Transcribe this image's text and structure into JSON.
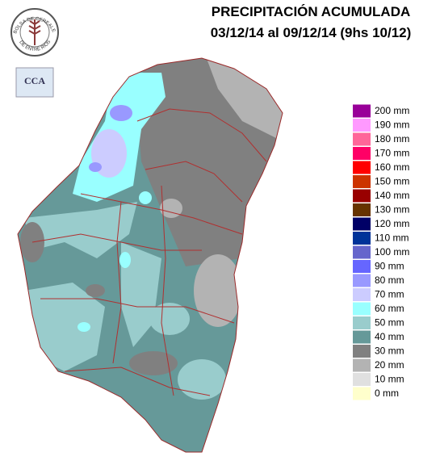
{
  "header": {
    "title": "PRECIPITACIÓN ACUMULADA",
    "subtitle": "03/12/14 al 09/12/14 (9hs 10/12)"
  },
  "logo": {
    "top_text": "BOLSA DE CEREALES",
    "bottom_text": "DE ENTRE RIOS",
    "badge": "CCA"
  },
  "legend": {
    "items": [
      {
        "label": "200 mm",
        "color": "#990099"
      },
      {
        "label": "190 mm",
        "color": "#ff99ff"
      },
      {
        "label": "180 mm",
        "color": "#ff6699"
      },
      {
        "label": "170 mm",
        "color": "#ff0066"
      },
      {
        "label": "160 mm",
        "color": "#ff0000"
      },
      {
        "label": "150 mm",
        "color": "#cc3300"
      },
      {
        "label": "140 mm",
        "color": "#990000"
      },
      {
        "label": "130 mm",
        "color": "#663300"
      },
      {
        "label": "120 mm",
        "color": "#000066"
      },
      {
        "label": "110 mm",
        "color": "#003399"
      },
      {
        "label": "100 mm",
        "color": "#6666cc"
      },
      {
        "label": "90 mm",
        "color": "#6666ff"
      },
      {
        "label": "80 mm",
        "color": "#9999ff"
      },
      {
        "label": "70 mm",
        "color": "#ccccff"
      },
      {
        "label": "60 mm",
        "color": "#99ffff"
      },
      {
        "label": "50 mm",
        "color": "#99cccc"
      },
      {
        "label": "40 mm",
        "color": "#669999"
      },
      {
        "label": "30 mm",
        "color": "#808080"
      },
      {
        "label": "20 mm",
        "color": "#b3b3b3"
      },
      {
        "label": "10 mm",
        "color": "#e0e0e0"
      },
      {
        "label": "0 mm",
        "color": "#ffffcc"
      }
    ]
  }
}
